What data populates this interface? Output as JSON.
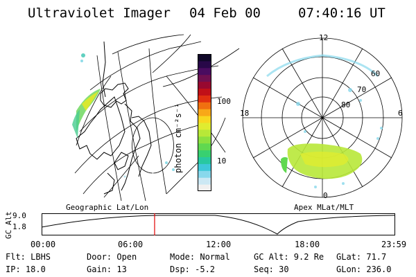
{
  "header": {
    "instrument": "Ultraviolet Imager",
    "date": "04 Feb 00",
    "time": "07:40:16 UT"
  },
  "geo_panel": {
    "label": "Geographic Lat/Lon"
  },
  "apex_panel": {
    "label": "Apex  MLat/MLT",
    "mlt_labels": {
      "top": "12",
      "left": "18",
      "right": "6",
      "bottom": "0"
    },
    "lat_labels": [
      "60",
      "70",
      "80"
    ]
  },
  "colorbar": {
    "unit": "photon cm⁻²s⁻¹",
    "ticks": [
      {
        "label": "100",
        "value": 100
      },
      {
        "label": "10",
        "value": 10
      }
    ],
    "colors": [
      "#f0f0f0",
      "#cce8f4",
      "#88d8ec",
      "#3ec8d8",
      "#28c8a0",
      "#38d070",
      "#60d850",
      "#8ce040",
      "#b8e838",
      "#e0ec30",
      "#f8d820",
      "#f8a818",
      "#f07010",
      "#e03010",
      "#c01018",
      "#980830",
      "#701050",
      "#4a0c60",
      "#280848",
      "#100828"
    ]
  },
  "timeline": {
    "ylabel": "GC Alt",
    "yticks": [
      "9.0",
      "1.8"
    ],
    "xticks": [
      "00:00",
      "06:00",
      "12:00",
      "18:00",
      "23:59"
    ],
    "current_hour": 7.67,
    "marker_color": "#e00000"
  },
  "info": {
    "flt": "Flt: LBHS",
    "ip": "IP: 18.0",
    "door": "Door: Open",
    "gain": "Gain: 13",
    "mode": "Mode: Normal",
    "dsp": "Dsp:    -5.2",
    "gcalt": "GC Alt: 9.2 Re",
    "seq": "Seq: 30",
    "glat": "GLat:  71.7",
    "glon": "GLon: 236.0"
  }
}
